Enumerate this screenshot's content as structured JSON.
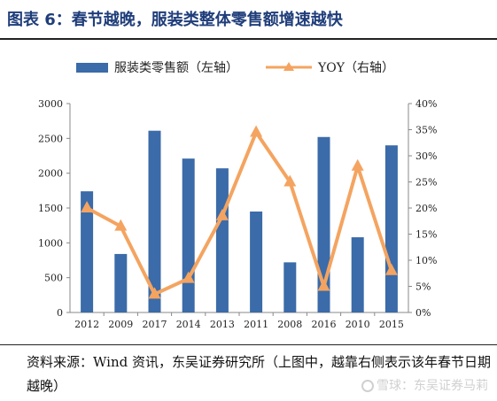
{
  "figure": {
    "title": "图表 6：春节越晚，服装类整体零售额增速越快",
    "source": "资料来源：Wind 资讯，东吴证券研究所（上图中，越靠右侧表示该年春节日期越晚）",
    "watermark": "雪球：东吴证券马莉"
  },
  "colors": {
    "bar": "#3b6ba8",
    "line": "#f4a460",
    "title": "#1f3d7a"
  },
  "chart_data": {
    "type": "bar",
    "categories": [
      "2012",
      "2009",
      "2017",
      "2014",
      "2013",
      "2011",
      "2008",
      "2016",
      "2010",
      "2015"
    ],
    "series": [
      {
        "name": "服装类零售额（左轴）",
        "type": "bar",
        "axis": "left",
        "values": [
          1740,
          840,
          2610,
          2210,
          2070,
          1450,
          720,
          2520,
          1080,
          2400
        ]
      },
      {
        "name": "YOY（右轴）",
        "type": "line",
        "axis": "right",
        "values": [
          0.2,
          0.165,
          0.035,
          0.065,
          0.185,
          0.345,
          0.25,
          0.05,
          0.28,
          0.08
        ]
      }
    ],
    "y_left": {
      "min": 0,
      "max": 3000,
      "ticks": [
        "0",
        "500",
        "1000",
        "1500",
        "2000",
        "2500",
        "3000"
      ]
    },
    "y_right": {
      "min": 0,
      "max": 0.4,
      "ticks": [
        "0%",
        "5%",
        "10%",
        "15%",
        "20%",
        "25%",
        "30%",
        "35%",
        "40%"
      ]
    },
    "legend_position": "top",
    "grid": false
  }
}
